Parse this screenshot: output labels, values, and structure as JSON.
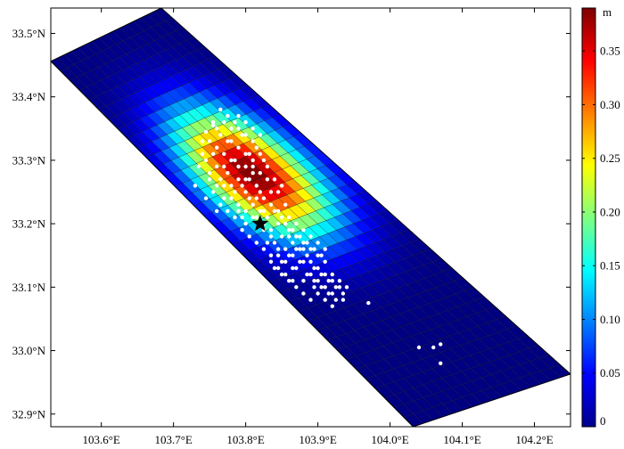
{
  "chart_data": {
    "type": "heatmap",
    "title": "",
    "xlabel": "",
    "ylabel": "",
    "xlim": [
      103.53,
      104.25
    ],
    "ylim": [
      32.88,
      33.54
    ],
    "x_ticks": [
      {
        "value": 103.6,
        "label": "103.6°E"
      },
      {
        "value": 103.7,
        "label": "103.7°E"
      },
      {
        "value": 103.8,
        "label": "103.8°E"
      },
      {
        "value": 103.9,
        "label": "103.9°E"
      },
      {
        "value": 104.0,
        "label": "104.0°E"
      },
      {
        "value": 104.1,
        "label": "104.1°E"
      },
      {
        "value": 104.2,
        "label": "104.2°E"
      }
    ],
    "y_ticks": [
      {
        "value": 32.9,
        "label": "32.9°N"
      },
      {
        "value": 33.0,
        "label": "33.0°N"
      },
      {
        "value": 33.1,
        "label": "33.1°N"
      },
      {
        "value": 33.2,
        "label": "33.2°N"
      },
      {
        "value": 33.3,
        "label": "33.3°N"
      },
      {
        "value": 33.4,
        "label": "33.4°N"
      },
      {
        "value": 33.5,
        "label": "33.5°N"
      }
    ],
    "fault_plane": {
      "corners": [
        [
          103.53,
          33.456
        ],
        [
          103.683,
          33.54
        ],
        [
          104.25,
          32.963
        ],
        [
          104.032,
          32.88
        ]
      ],
      "strike_cells": 38,
      "dip_cells": 16
    },
    "slip_peak": {
      "strike_frac": 0.38,
      "dip_frac": 0.5,
      "max": 0.39,
      "sigma_strike": 0.115,
      "sigma_dip": 0.24
    },
    "colorbar": {
      "unit": "m",
      "range": [
        0,
        0.39
      ],
      "ticks": [
        {
          "value": 0,
          "label": "0"
        },
        {
          "value": 0.05,
          "label": "0.05"
        },
        {
          "value": 0.1,
          "label": "0.10"
        },
        {
          "value": 0.15,
          "label": "0.15"
        },
        {
          "value": 0.2,
          "label": "0.20"
        },
        {
          "value": 0.25,
          "label": "0.25"
        },
        {
          "value": 0.3,
          "label": "0.30"
        },
        {
          "value": 0.35,
          "label": "0.35"
        }
      ],
      "colormap": "jet"
    },
    "epicenter": {
      "lon": 103.82,
      "lat": 33.2,
      "marker": "star",
      "color": "#000000"
    },
    "aftershocks": {
      "color": "#ffffff",
      "points": [
        [
          103.745,
          33.345
        ],
        [
          103.75,
          33.33
        ],
        [
          103.755,
          33.355
        ],
        [
          103.76,
          33.32
        ],
        [
          103.765,
          33.34
        ],
        [
          103.77,
          33.31
        ],
        [
          103.775,
          33.33
        ],
        [
          103.78,
          33.35
        ],
        [
          103.785,
          33.3
        ],
        [
          103.79,
          33.32
        ],
        [
          103.795,
          33.34
        ],
        [
          103.8,
          33.29
        ],
        [
          103.805,
          33.31
        ],
        [
          103.81,
          33.33
        ],
        [
          103.775,
          33.28
        ],
        [
          103.78,
          33.26
        ],
        [
          103.765,
          33.27
        ],
        [
          103.76,
          33.29
        ],
        [
          103.755,
          33.25
        ],
        [
          103.77,
          33.24
        ],
        [
          103.785,
          33.25
        ],
        [
          103.79,
          33.27
        ],
        [
          103.8,
          33.25
        ],
        [
          103.805,
          33.27
        ],
        [
          103.81,
          33.29
        ],
        [
          103.815,
          33.26
        ],
        [
          103.82,
          33.28
        ],
        [
          103.825,
          33.3
        ],
        [
          103.83,
          33.27
        ],
        [
          103.835,
          33.25
        ],
        [
          103.79,
          33.23
        ],
        [
          103.795,
          33.21
        ],
        [
          103.8,
          33.22
        ],
        [
          103.81,
          33.23
        ],
        [
          103.815,
          33.21
        ],
        [
          103.82,
          33.22
        ],
        [
          103.825,
          33.24
        ],
        [
          103.83,
          33.21
        ],
        [
          103.835,
          33.19
        ],
        [
          103.84,
          33.22
        ],
        [
          103.845,
          33.2
        ],
        [
          103.85,
          33.18
        ],
        [
          103.84,
          33.17
        ],
        [
          103.845,
          33.15
        ],
        [
          103.855,
          33.16
        ],
        [
          103.86,
          33.18
        ],
        [
          103.865,
          33.15
        ],
        [
          103.87,
          33.13
        ],
        [
          103.875,
          33.16
        ],
        [
          103.88,
          33.14
        ],
        [
          103.885,
          33.12
        ],
        [
          103.89,
          33.14
        ],
        [
          103.895,
          33.11
        ],
        [
          103.9,
          33.13
        ],
        [
          103.905,
          33.1
        ],
        [
          103.91,
          33.12
        ],
        [
          103.915,
          33.09
        ],
        [
          103.92,
          33.11
        ],
        [
          103.925,
          33.08
        ],
        [
          103.93,
          33.1
        ],
        [
          103.865,
          33.19
        ],
        [
          103.87,
          33.2
        ],
        [
          103.875,
          33.18
        ],
        [
          103.88,
          33.19
        ],
        [
          103.885,
          33.17
        ],
        [
          103.89,
          33.18
        ],
        [
          103.895,
          33.16
        ],
        [
          103.9,
          33.17
        ],
        [
          103.905,
          33.15
        ],
        [
          103.91,
          33.16
        ],
        [
          103.85,
          33.21
        ],
        [
          103.855,
          33.23
        ],
        [
          103.86,
          33.21
        ],
        [
          103.82,
          33.25
        ],
        [
          103.825,
          33.19
        ],
        [
          103.83,
          33.17
        ],
        [
          103.835,
          33.15
        ],
        [
          103.84,
          33.13
        ],
        [
          103.85,
          33.12
        ],
        [
          103.86,
          33.11
        ],
        [
          103.87,
          33.1
        ],
        [
          103.88,
          33.09
        ],
        [
          103.89,
          33.08
        ],
        [
          103.9,
          33.09
        ],
        [
          103.755,
          33.36
        ],
        [
          103.76,
          33.35
        ],
        [
          103.77,
          33.36
        ],
        [
          103.78,
          33.33
        ],
        [
          103.79,
          33.35
        ],
        [
          103.8,
          33.34
        ],
        [
          103.74,
          33.33
        ],
        [
          103.745,
          33.3
        ],
        [
          103.75,
          33.28
        ],
        [
          103.755,
          33.31
        ],
        [
          103.76,
          33.26
        ],
        [
          103.77,
          33.29
        ],
        [
          103.78,
          33.3
        ],
        [
          103.79,
          33.29
        ],
        [
          103.8,
          33.31
        ],
        [
          103.81,
          33.3
        ],
        [
          103.815,
          33.32
        ],
        [
          103.82,
          33.31
        ],
        [
          103.83,
          33.29
        ],
        [
          103.84,
          33.27
        ],
        [
          103.845,
          33.25
        ],
        [
          103.85,
          33.26
        ],
        [
          103.795,
          33.26
        ],
        [
          103.805,
          33.24
        ],
        [
          103.815,
          33.24
        ],
        [
          103.825,
          33.22
        ],
        [
          103.835,
          33.23
        ],
        [
          103.845,
          33.22
        ],
        [
          103.855,
          33.2
        ],
        [
          103.865,
          33.17
        ],
        [
          103.875,
          33.14
        ],
        [
          103.885,
          33.15
        ],
        [
          103.895,
          33.13
        ],
        [
          103.905,
          33.12
        ],
        [
          103.915,
          33.11
        ],
        [
          103.925,
          33.1
        ],
        [
          103.935,
          33.09
        ],
        [
          103.94,
          33.1
        ],
        [
          103.91,
          33.08
        ],
        [
          103.92,
          33.07
        ],
        [
          103.895,
          33.1
        ],
        [
          103.88,
          33.11
        ],
        [
          103.865,
          33.13
        ],
        [
          103.855,
          33.14
        ],
        [
          103.845,
          33.16
        ],
        [
          103.835,
          33.18
        ],
        [
          103.825,
          33.2
        ],
        [
          103.81,
          33.21
        ],
        [
          103.8,
          33.2
        ],
        [
          103.79,
          33.22
        ],
        [
          103.78,
          33.24
        ],
        [
          103.77,
          33.26
        ],
        [
          103.765,
          33.23
        ],
        [
          103.775,
          33.22
        ],
        [
          103.785,
          33.21
        ],
        [
          103.795,
          33.19
        ],
        [
          103.805,
          33.18
        ],
        [
          103.815,
          33.17
        ],
        [
          103.825,
          33.16
        ],
        [
          103.835,
          33.14
        ],
        [
          103.845,
          33.13
        ],
        [
          103.855,
          33.12
        ],
        [
          103.865,
          33.11
        ],
        [
          103.8,
          33.36
        ],
        [
          103.81,
          33.35
        ],
        [
          103.82,
          33.34
        ],
        [
          103.79,
          33.37
        ],
        [
          103.765,
          33.38
        ],
        [
          103.775,
          33.37
        ],
        [
          103.785,
          33.36
        ],
        [
          103.8,
          33.27
        ],
        [
          103.81,
          33.28
        ],
        [
          103.74,
          33.31
        ],
        [
          103.735,
          33.29
        ],
        [
          103.75,
          33.27
        ],
        [
          103.73,
          33.26
        ],
        [
          103.745,
          33.24
        ],
        [
          103.76,
          33.22
        ],
        [
          103.92,
          33.12
        ],
        [
          103.93,
          33.11
        ],
        [
          103.935,
          33.08
        ],
        [
          103.91,
          33.14
        ],
        [
          103.9,
          33.15
        ],
        [
          103.89,
          33.16
        ],
        [
          103.88,
          33.17
        ],
        [
          103.87,
          33.16
        ],
        [
          103.86,
          33.15
        ],
        [
          103.85,
          33.14
        ],
        [
          103.86,
          33.19
        ],
        [
          103.87,
          33.18
        ],
        [
          103.88,
          33.16
        ],
        [
          103.89,
          33.12
        ],
        [
          103.9,
          33.11
        ],
        [
          103.91,
          33.1
        ],
        [
          103.92,
          33.09
        ],
        [
          103.97,
          33.075
        ],
        [
          104.04,
          33.005
        ],
        [
          104.06,
          33.005
        ],
        [
          104.07,
          33.01
        ],
        [
          104.07,
          32.98
        ]
      ]
    }
  }
}
